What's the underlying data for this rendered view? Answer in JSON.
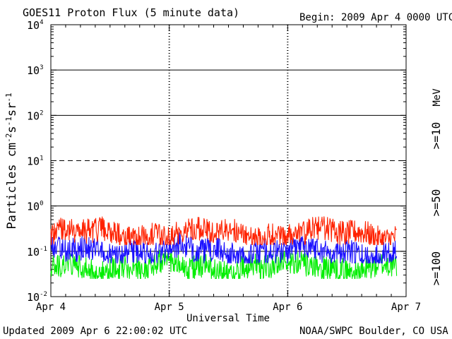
{
  "header": {
    "title": "GOES11 Proton Flux (5 minute data)",
    "begin": "Begin: 2009 Apr 4 0000 UTC"
  },
  "footer": {
    "updated": "Updated 2009 Apr  6 22:00:02 UTC",
    "credit": "NOAA/SWPC Boulder, CO USA"
  },
  "legend": {
    "unit": "MeV",
    "colors": {
      "ge10": "#ff2200",
      "ge50": "#1a10ff",
      "ge100": "#00ee00"
    }
  },
  "chart_data": {
    "type": "line",
    "title": "GOES11 Proton Flux (5 minute data)",
    "ylabel": "Particles cm-2 s-1 sr-1",
    "xlabel": "Universal Time",
    "y_scale": "log",
    "ylim": [
      0.01,
      10000
    ],
    "y_ticks": [
      {
        "exp": "-2"
      },
      {
        "exp": "-1"
      },
      {
        "exp": "0"
      },
      {
        "exp": "1"
      },
      {
        "exp": "2"
      },
      {
        "exp": "3"
      },
      {
        "exp": "4"
      }
    ],
    "x_ticks": [
      "Apr 4",
      "Apr 5",
      "Apr 6",
      "Apr 7"
    ],
    "xlim_days": [
      0,
      3
    ],
    "data_end_day": 2.92,
    "series": [
      {
        "name": ">=10",
        "color": "#ff2200",
        "baseline": 0.25,
        "min": 0.14,
        "max": 0.58
      },
      {
        "name": ">=50",
        "color": "#1a10ff",
        "baseline": 0.1,
        "min": 0.055,
        "max": 0.26
      },
      {
        "name": ">=100",
        "color": "#00ee00",
        "baseline": 0.045,
        "min": 0.025,
        "max": 0.11
      }
    ]
  }
}
